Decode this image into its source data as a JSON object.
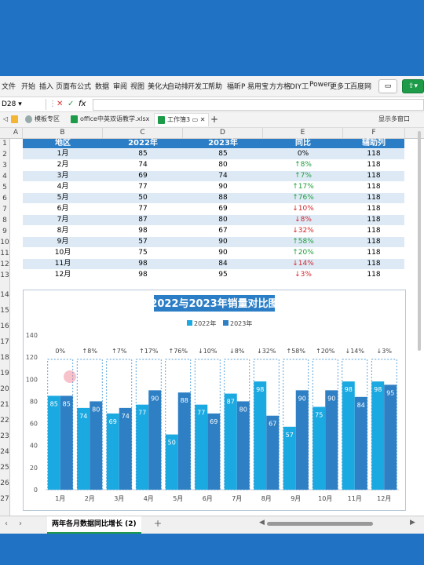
{
  "ribbon": {
    "menu": [
      "文件",
      "开始",
      "插入",
      "页面布",
      "公式",
      "数据",
      "审阅",
      "视图",
      "美化大",
      "自动排",
      "开发工",
      "帮助",
      "福昕P",
      "易用宝",
      "方方格",
      "DIY工",
      "Power",
      "更多工",
      "百度网"
    ]
  },
  "formula_bar": {
    "cell_ref": "D28",
    "fx": "fx"
  },
  "file_tabs": [
    "模板专区",
    "office中英双语教学.xlsx",
    "工作簿3"
  ],
  "window_right_label": "显示多窗口",
  "columns": [
    "A",
    "B",
    "C",
    "D",
    "E",
    "F"
  ],
  "rows": [
    "1",
    "2",
    "3",
    "4",
    "5",
    "6",
    "7",
    "8",
    "9",
    "10",
    "11",
    "12",
    "13",
    "14",
    "15",
    "16",
    "17",
    "18",
    "19",
    "20",
    "21",
    "22",
    "23",
    "24",
    "25",
    "26",
    "27"
  ],
  "table": {
    "headers": [
      "地区",
      "2022年",
      "2023年",
      "同比",
      "辅助列"
    ],
    "data": [
      [
        "1月",
        "85",
        "85",
        "0%",
        "118"
      ],
      [
        "2月",
        "74",
        "80",
        "↑8%",
        "118"
      ],
      [
        "3月",
        "69",
        "74",
        "↑7%",
        "118"
      ],
      [
        "4月",
        "77",
        "90",
        "↑17%",
        "118"
      ],
      [
        "5月",
        "50",
        "88",
        "↑76%",
        "118"
      ],
      [
        "6月",
        "77",
        "69",
        "↓10%",
        "118"
      ],
      [
        "7月",
        "87",
        "80",
        "↓8%",
        "118"
      ],
      [
        "8月",
        "98",
        "67",
        "↓32%",
        "118"
      ],
      [
        "9月",
        "57",
        "90",
        "↑58%",
        "118"
      ],
      [
        "10月",
        "75",
        "90",
        "↑20%",
        "118"
      ],
      [
        "11月",
        "98",
        "84",
        "↓14%",
        "118"
      ],
      [
        "12月",
        "98",
        "95",
        "↓3%",
        "118"
      ]
    ]
  },
  "chart_data": {
    "type": "bar",
    "title": "2022与2023年销量对比图",
    "categories": [
      "1月",
      "2月",
      "3月",
      "4月",
      "5月",
      "6月",
      "7月",
      "8月",
      "9月",
      "10月",
      "11月",
      "12月"
    ],
    "series": [
      {
        "name": "2022年",
        "values": [
          85,
          74,
          69,
          77,
          50,
          77,
          87,
          98,
          57,
          75,
          98,
          98
        ],
        "color": "#1ba9e1"
      },
      {
        "name": "2023年",
        "values": [
          85,
          80,
          74,
          90,
          88,
          69,
          80,
          67,
          90,
          90,
          84,
          95
        ],
        "color": "#2e7fc4"
      }
    ],
    "helper_values": [
      118,
      118,
      118,
      118,
      118,
      118,
      118,
      118,
      118,
      118,
      118,
      118
    ],
    "change_labels": [
      "0%",
      "↑8%",
      "↑7%",
      "↑17%",
      "↑76%",
      "↓10%",
      "↓8%",
      "↓32%",
      "↑58%",
      "↑20%",
      "↓14%",
      "↓3%"
    ],
    "yticks": [
      "0",
      "20",
      "40",
      "60",
      "80",
      "100",
      "120",
      "140"
    ],
    "ylim": [
      0,
      140
    ],
    "legend_placement": "top-center"
  },
  "sheet_tab": "两年各月数据同比增长 (2)",
  "colors": {
    "header_blue": "#2b7ec6",
    "band": "#ddeaf6",
    "up": "#1e9d3a",
    "down": "#d2262b"
  }
}
